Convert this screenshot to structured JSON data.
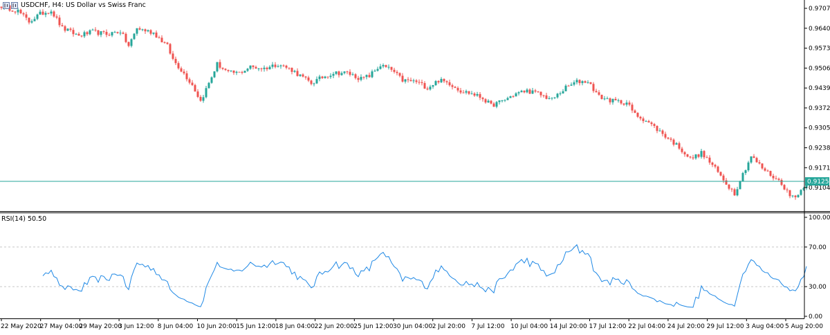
{
  "header": {
    "symbol_title": "USDCHF, H4:  US Dollar vs Swiss Franc"
  },
  "indicator": {
    "title": "RSI(14) 50.50"
  },
  "price": {
    "current_label": "0.91250",
    "current_value": 0.9125
  },
  "colors": {
    "bull": "#26a69a",
    "bear": "#ef5350",
    "current_line": "#26a69a",
    "rsi_line": "#1e88e5",
    "level_line": "#c8c8c8",
    "axis": "#000000"
  },
  "chart_data": [
    {
      "type": "candlestick",
      "title": "USDCHF, H4:  US Dollar vs Swiss Franc",
      "x_ticks": [
        "22 May 2020",
        "27 May 04:00",
        "29 May 20:00",
        "3 Jun 12:00",
        "8 Jun 04:00",
        "10 Jun 20:00",
        "15 Jun 12:00",
        "18 Jun 04:00",
        "22 Jun 20:00",
        "25 Jun 12:00",
        "30 Jun 04:00",
        "2 Jul 20:00",
        "7 Jul 12:00",
        "10 Jul 04:00",
        "14 Jul 20:00",
        "17 Jul 12:00",
        "22 Jul 04:00",
        "24 Jul 20:00",
        "29 Jul 12:00",
        "3 Aug 04:00",
        "5 Aug 20:00"
      ],
      "y_ticks": [
        "0.97070",
        "0.96400",
        "0.95730",
        "0.95060",
        "0.94390",
        "0.93720",
        "0.93050",
        "0.92380",
        "0.91710",
        "0.91040"
      ],
      "ylim": [
        0.9025,
        0.9735
      ],
      "close_path": [
        [
          0,
          0.9715
        ],
        [
          6,
          0.9698
        ],
        [
          10,
          0.9662
        ],
        [
          14,
          0.9688
        ],
        [
          18,
          0.97
        ],
        [
          22,
          0.964
        ],
        [
          28,
          0.9615
        ],
        [
          33,
          0.9628
        ],
        [
          38,
          0.962
        ],
        [
          43,
          0.963
        ],
        [
          46,
          0.958
        ],
        [
          49,
          0.964
        ],
        [
          55,
          0.9625
        ],
        [
          60,
          0.958
        ],
        [
          62,
          0.9535
        ],
        [
          65,
          0.95
        ],
        [
          69,
          0.945
        ],
        [
          72,
          0.9395
        ],
        [
          75,
          0.9455
        ],
        [
          78,
          0.952
        ],
        [
          82,
          0.949
        ],
        [
          86,
          0.949
        ],
        [
          90,
          0.951
        ],
        [
          95,
          0.9505
        ],
        [
          100,
          0.952
        ],
        [
          105,
          0.95
        ],
        [
          108,
          0.948
        ],
        [
          112,
          0.9455
        ],
        [
          116,
          0.9475
        ],
        [
          120,
          0.949
        ],
        [
          125,
          0.949
        ],
        [
          130,
          0.947
        ],
        [
          133,
          0.948
        ],
        [
          137,
          0.9515
        ],
        [
          141,
          0.95
        ],
        [
          145,
          0.9465
        ],
        [
          150,
          0.946
        ],
        [
          154,
          0.944
        ],
        [
          158,
          0.9465
        ],
        [
          162,
          0.9455
        ],
        [
          166,
          0.943
        ],
        [
          170,
          0.942
        ],
        [
          174,
          0.9405
        ],
        [
          177,
          0.938
        ],
        [
          181,
          0.9395
        ],
        [
          186,
          0.942
        ],
        [
          190,
          0.943
        ],
        [
          194,
          0.942
        ],
        [
          199,
          0.94
        ],
        [
          204,
          0.944
        ],
        [
          208,
          0.946
        ],
        [
          212,
          0.9462
        ],
        [
          216,
          0.941
        ],
        [
          221,
          0.9395
        ],
        [
          226,
          0.939
        ],
        [
          229,
          0.935
        ],
        [
          233,
          0.933
        ],
        [
          237,
          0.93
        ],
        [
          241,
          0.927
        ],
        [
          245,
          0.924
        ],
        [
          249,
          0.92
        ],
        [
          253,
          0.922
        ],
        [
          257,
          0.918
        ],
        [
          261,
          0.913
        ],
        [
          265,
          0.9085
        ],
        [
          268,
          0.915
        ],
        [
          271,
          0.921
        ],
        [
          275,
          0.917
        ],
        [
          279,
          0.914
        ],
        [
          282,
          0.912
        ],
        [
          285,
          0.9075
        ],
        [
          288,
          0.908
        ],
        [
          291,
          0.9125
        ]
      ]
    },
    {
      "type": "line",
      "title": "RSI(14) 50.50",
      "y_ticks": [
        "100.00",
        "70.00",
        "30.00",
        "0.00"
      ],
      "ylim": [
        0,
        100
      ],
      "levels": [
        70,
        30
      ],
      "last_value": 50.5
    }
  ]
}
